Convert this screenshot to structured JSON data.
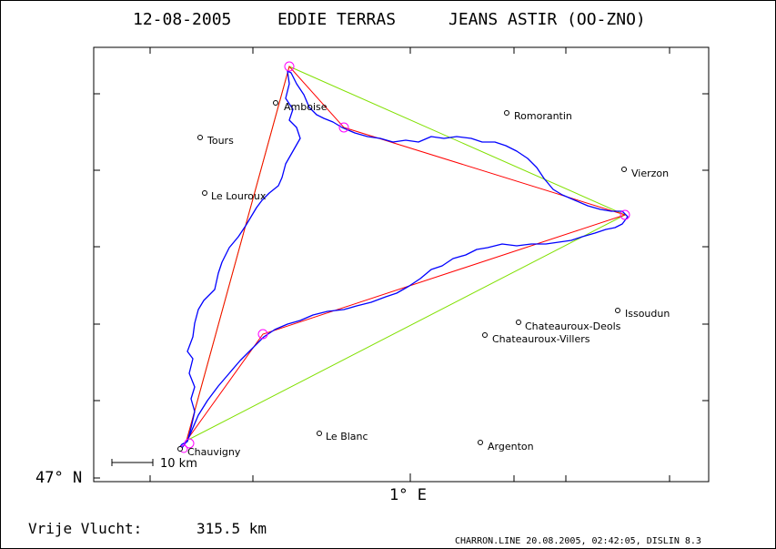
{
  "header": {
    "date": "12-08-2005",
    "pilot": "EDDIE TERRAS",
    "glider": "JEANS ASTIR (OO-ZNO)"
  },
  "axes": {
    "lat_label": "47° N",
    "lon_label": "1° E"
  },
  "scale": {
    "label": "10 km"
  },
  "towns": [
    {
      "name": "Amboise"
    },
    {
      "name": "Romorantin"
    },
    {
      "name": "Tours"
    },
    {
      "name": "Vierzon"
    },
    {
      "name": "Le Louroux"
    },
    {
      "name": "Issoudun"
    },
    {
      "name": "Chateauroux-Deols"
    },
    {
      "name": "Chateauroux-Villers"
    },
    {
      "name": "Le Blanc"
    },
    {
      "name": "Argenton"
    },
    {
      "name": "Chauvigny"
    }
  ],
  "flight": {
    "distance_label": "Vrije Vlucht:",
    "distance_value": "315.5 km"
  },
  "footer": {
    "text": "CHARRON.LINE 20.08.2005, 02:42:05, DISLIN 8.3"
  },
  "colors": {
    "track": "#0000ff",
    "optimized_route": "#ff0000",
    "triangle": "#80e000",
    "turnpoint": "#ff00ff"
  }
}
